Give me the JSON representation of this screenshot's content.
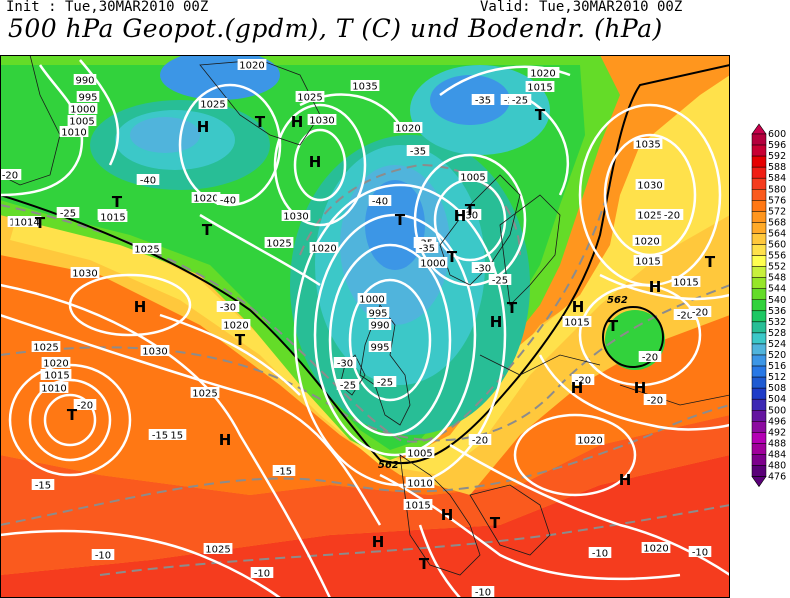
{
  "header": {
    "init": "Init : Tue,30MAR2010 00Z",
    "valid": "Valid: Tue,30MAR2010 00Z",
    "title": "500 hPa Geopot.(gpdm), T (C) und Bodendr. (hPa)"
  },
  "colorbar": {
    "labels": [
      "600",
      "596",
      "592",
      "588",
      "584",
      "580",
      "576",
      "572",
      "568",
      "564",
      "560",
      "556",
      "552",
      "548",
      "544",
      "540",
      "536",
      "532",
      "528",
      "524",
      "520",
      "516",
      "512",
      "508",
      "504",
      "500",
      "496",
      "492",
      "488",
      "484",
      "480",
      "476"
    ],
    "colors": [
      "#c8004b",
      "#b4003c",
      "#c80032",
      "#e60000",
      "#f01e14",
      "#f53c1e",
      "#fa5a1e",
      "#ff7814",
      "#ff961e",
      "#ffaa28",
      "#ffc83c",
      "#ffe14b",
      "#ffff50",
      "#c8f03c",
      "#96e628",
      "#64dc28",
      "#32d23c",
      "#1ec864",
      "#28be96",
      "#3cc8c8",
      "#50b4dc",
      "#3c96e6",
      "#2878e6",
      "#1e5ad2",
      "#1e3cc8",
      "#3c28b4",
      "#6414a0",
      "#8c0aa0",
      "#b400b4",
      "#a0009b",
      "#7d008c",
      "#5a0078"
    ]
  },
  "map": {
    "label_562": "562",
    "isobars": [
      "990",
      "995",
      "1000",
      "1005",
      "1010",
      "1005",
      "1015",
      "1020",
      "1025",
      "1030",
      "1035"
    ],
    "temps": [
      "-40",
      "-35",
      "-30",
      "-25",
      "-20",
      "-15",
      "-10"
    ],
    "highs": [
      "H",
      "H",
      "H",
      "H",
      "H",
      "H",
      "H",
      "H",
      "H",
      "H",
      "H",
      "H",
      "H",
      "H"
    ],
    "lows": [
      "T",
      "T",
      "T",
      "T",
      "T",
      "T",
      "T",
      "T",
      "T",
      "T",
      "T",
      "T",
      "T",
      "T",
      "T"
    ],
    "isobar_labels": [
      {
        "t": "990"
      },
      {
        "t": "995"
      },
      {
        "t": "1000"
      },
      {
        "t": "1005"
      },
      {
        "t": "1010"
      },
      {
        "t": "1020"
      },
      {
        "t": "1025"
      },
      {
        "t": "1025"
      },
      {
        "t": "1035"
      },
      {
        "t": "1030"
      },
      {
        "t": "1020"
      },
      {
        "t": "1015"
      },
      {
        "t": "1020"
      },
      {
        "t": "1010"
      },
      {
        "t": "1035"
      },
      {
        "t": "1030"
      },
      {
        "t": "1025"
      },
      {
        "t": "1020"
      },
      {
        "t": "1015"
      },
      {
        "t": "1015"
      },
      {
        "t": "1014"
      },
      {
        "t": "1015"
      },
      {
        "t": "1025"
      },
      {
        "t": "1020"
      },
      {
        "t": "1030"
      },
      {
        "t": "1025"
      },
      {
        "t": "1020"
      },
      {
        "t": "1000"
      },
      {
        "t": "1005"
      },
      {
        "t": "1020"
      },
      {
        "t": "1030"
      },
      {
        "t": "1020"
      },
      {
        "t": "1025"
      },
      {
        "t": "1015"
      },
      {
        "t": "1010"
      },
      {
        "t": "1020"
      },
      {
        "t": "1015"
      },
      {
        "t": "1000"
      },
      {
        "t": "995"
      },
      {
        "t": "990"
      },
      {
        "t": "995"
      },
      {
        "t": "1030"
      },
      {
        "t": "1025"
      },
      {
        "t": "1005"
      },
      {
        "t": "1010"
      },
      {
        "t": "1015"
      },
      {
        "t": "1020"
      },
      {
        "t": "1020"
      },
      {
        "t": "1015"
      },
      {
        "t": "1025"
      },
      {
        "t": "1020"
      },
      {
        "t": "1015"
      }
    ],
    "temp_labels": [
      {
        "t": "-40"
      },
      {
        "t": "-35"
      },
      {
        "t": "-40"
      },
      {
        "t": "-35"
      },
      {
        "t": "-40"
      },
      {
        "t": "-35"
      },
      {
        "t": "-30"
      },
      {
        "t": "-35"
      },
      {
        "t": "-30"
      },
      {
        "t": "-25"
      },
      {
        "t": "-20"
      },
      {
        "t": "-25"
      },
      {
        "t": "-25"
      },
      {
        "t": "-20"
      },
      {
        "t": "-30"
      },
      {
        "t": "-30"
      },
      {
        "t": "-25"
      },
      {
        "t": "-25"
      },
      {
        "t": "-20"
      },
      {
        "t": "-20"
      },
      {
        "t": "-20"
      },
      {
        "t": "-20"
      },
      {
        "t": "-15"
      },
      {
        "t": "-15"
      },
      {
        "t": "-15"
      },
      {
        "t": "-15"
      },
      {
        "t": "-10"
      },
      {
        "t": "-10"
      },
      {
        "t": "-10"
      },
      {
        "t": "-10"
      },
      {
        "t": "-10"
      },
      {
        "t": "-20"
      },
      {
        "t": "-25"
      },
      {
        "t": "-20"
      },
      {
        "t": "-20"
      }
    ]
  }
}
